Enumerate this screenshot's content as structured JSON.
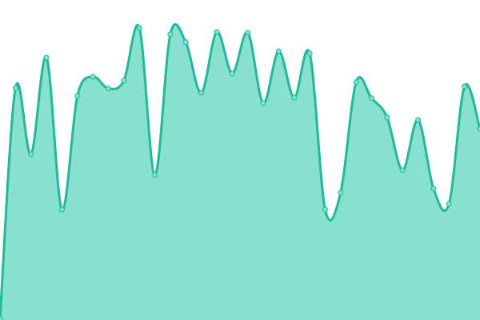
{
  "chart_data": {
    "type": "area",
    "title": "",
    "xlabel": "",
    "ylabel": "",
    "grid": false,
    "legend": "none",
    "ylim": [
      0,
      100
    ],
    "x": [
      0,
      1,
      2,
      3,
      4,
      5,
      6,
      7,
      8,
      9,
      10,
      11,
      12,
      13,
      14,
      15,
      16,
      17,
      18,
      19,
      20,
      21,
      22,
      23,
      24,
      25,
      26,
      27,
      28,
      29,
      30,
      31
    ],
    "values": [
      0.5,
      72.5,
      51.8,
      82,
      34.5,
      70,
      76,
      72.3,
      74.8,
      91.3,
      45.3,
      89.3,
      86.8,
      71,
      90,
      77,
      89.8,
      67.8,
      84,
      69.5,
      83.3,
      34.5,
      39.8,
      74.3,
      69.3,
      63.3,
      46.8,
      62.5,
      41,
      36.3,
      73,
      59.8
    ],
    "colors": {
      "line": "#1dbb98",
      "fill": "#88e0cf",
      "marker_fill": "#7fe0cb",
      "marker_stroke": "#1dbb98"
    }
  }
}
